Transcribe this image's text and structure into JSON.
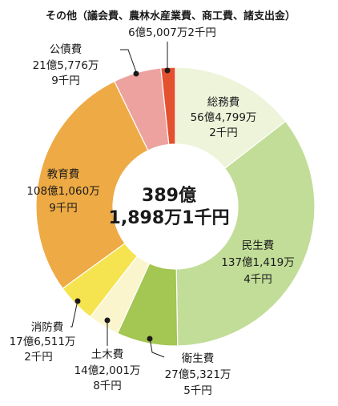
{
  "chart_data": {
    "type": "pie",
    "variant": "donut",
    "center_label": [
      "389億",
      "1,898万1千円"
    ],
    "slices": [
      {
        "name": "総務費",
        "value": 564799,
        "amount_lines": [
          "56億4,799万",
          "2千円"
        ],
        "color": "#eef4da"
      },
      {
        "name": "民生費",
        "value": 1371419,
        "amount_lines": [
          "137億1,419万",
          "4千円"
        ],
        "color": "#c1dd98"
      },
      {
        "name": "衛生費",
        "value": 275321,
        "amount_lines": [
          "27億5,321万",
          "5千円"
        ],
        "color": "#a4c652"
      },
      {
        "name": "土木費",
        "value": 142001,
        "amount_lines": [
          "14億2,001万",
          "8千円"
        ],
        "color": "#fbf5cd"
      },
      {
        "name": "消防費",
        "value": 176511,
        "amount_lines": [
          "17億6,511万",
          "2千円"
        ],
        "color": "#f5e44f"
      },
      {
        "name": "教育費",
        "value": 1081060,
        "amount_lines": [
          "108億1,060万",
          "9千円"
        ],
        "color": "#eeaa44"
      },
      {
        "name": "公債費",
        "value": 215776,
        "amount_lines": [
          "21億5,776万",
          "9千円"
        ],
        "color": "#eda29f"
      },
      {
        "name": "その他（議会費、農林水産業費、商工費、諸支出金）",
        "value": 65007,
        "amount_lines": [
          "6億5,007万2千円"
        ],
        "color": "#e4512e"
      }
    ]
  }
}
